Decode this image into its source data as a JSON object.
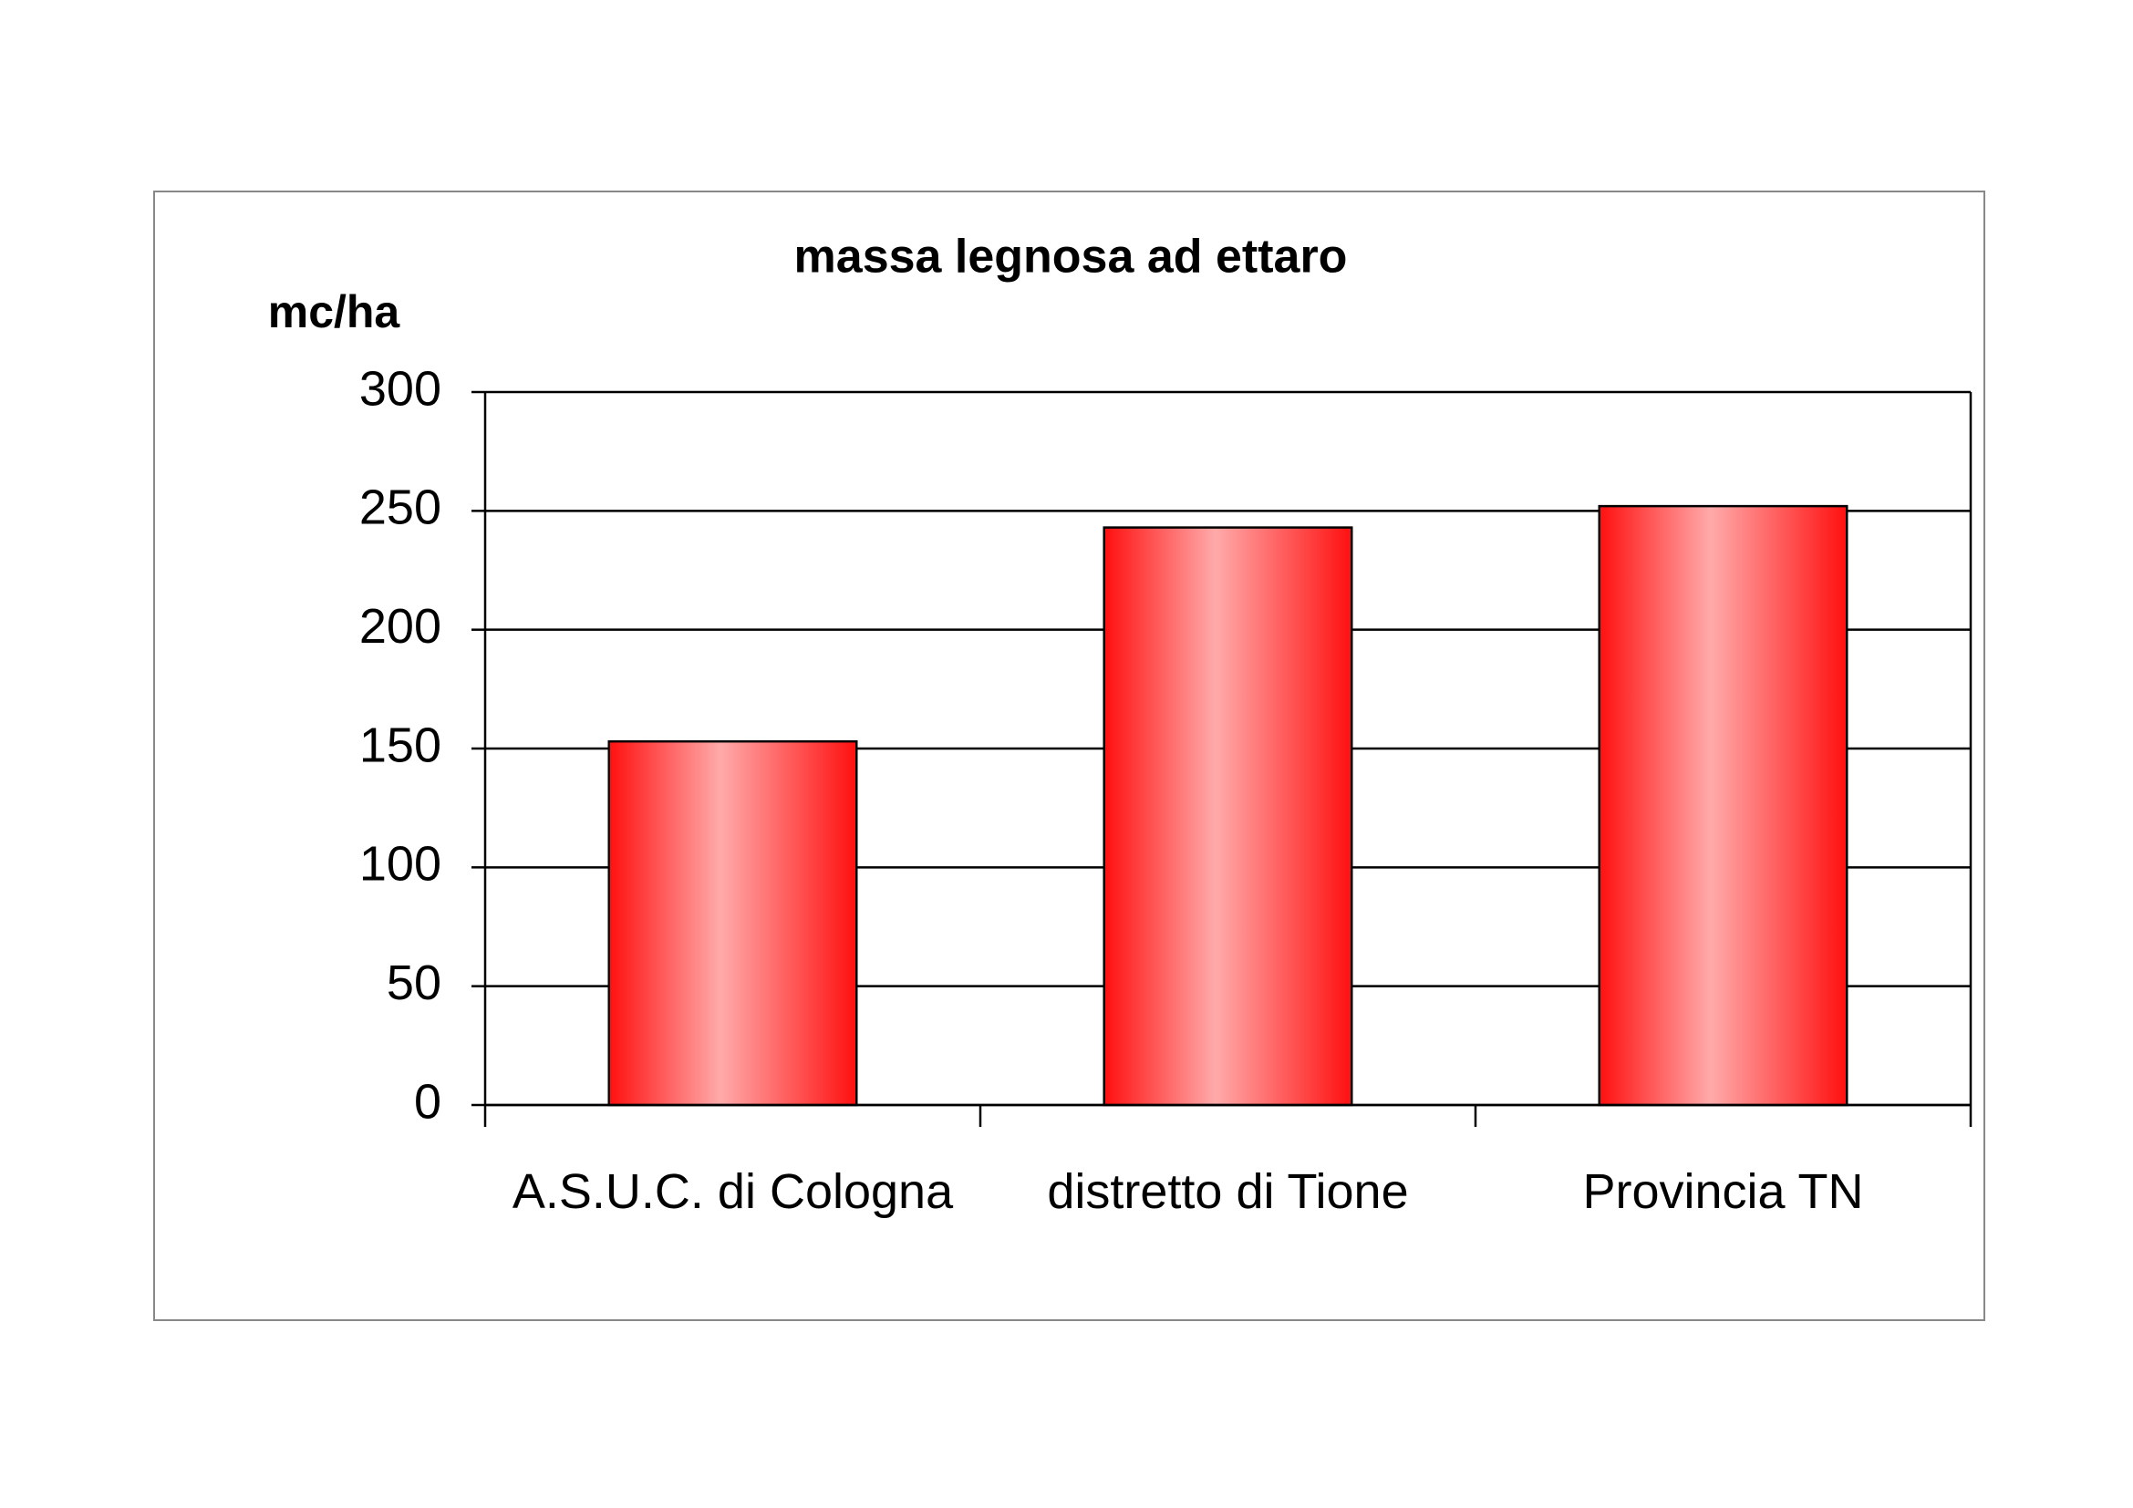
{
  "chart_data": {
    "type": "bar",
    "title": "massa legnosa ad ettaro",
    "y_label": "mc/ha",
    "categories": [
      "A.S.U.C. di Cologna",
      "distretto di Tione",
      "Provincia TN"
    ],
    "values": [
      153,
      243,
      252
    ],
    "color": "#ff1a1a",
    "ylim": [
      0,
      300
    ],
    "yticks": [
      0,
      50,
      100,
      150,
      200,
      250,
      300
    ],
    "grid": true
  }
}
